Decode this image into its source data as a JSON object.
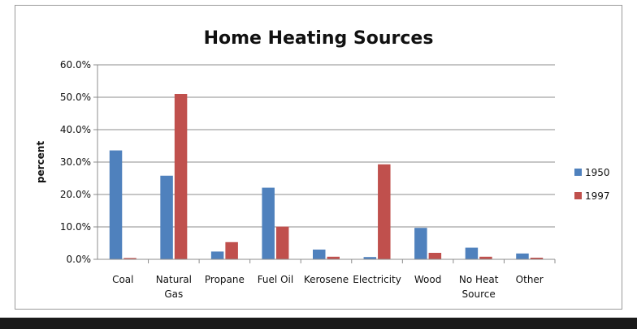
{
  "chart_data": {
    "type": "bar",
    "title": "Home Heating Sources",
    "xlabel": "",
    "ylabel": "percent",
    "categories": [
      [
        "Coal"
      ],
      [
        "Natural",
        "Gas"
      ],
      [
        "Propane"
      ],
      [
        "Fuel Oil"
      ],
      [
        "Kerosene"
      ],
      [
        "Electricity"
      ],
      [
        "Wood"
      ],
      [
        "No Heat",
        "Source"
      ],
      [
        "Other"
      ]
    ],
    "series": [
      {
        "name": "1950",
        "color": "#4f81bd",
        "values": [
          33.6,
          25.8,
          2.4,
          22.1,
          3.0,
          0.7,
          9.7,
          3.6,
          1.8
        ]
      },
      {
        "name": "1997",
        "color": "#c0504d",
        "values": [
          0.4,
          51.0,
          5.3,
          10.1,
          0.8,
          29.3,
          2.0,
          0.8,
          0.5
        ]
      }
    ],
    "ylim": [
      0,
      60
    ],
    "yticks": [
      "0.0%",
      "10.0%",
      "20.0%",
      "30.0%",
      "40.0%",
      "50.0%",
      "60.0%"
    ],
    "grid": true,
    "legend_position": "right"
  }
}
